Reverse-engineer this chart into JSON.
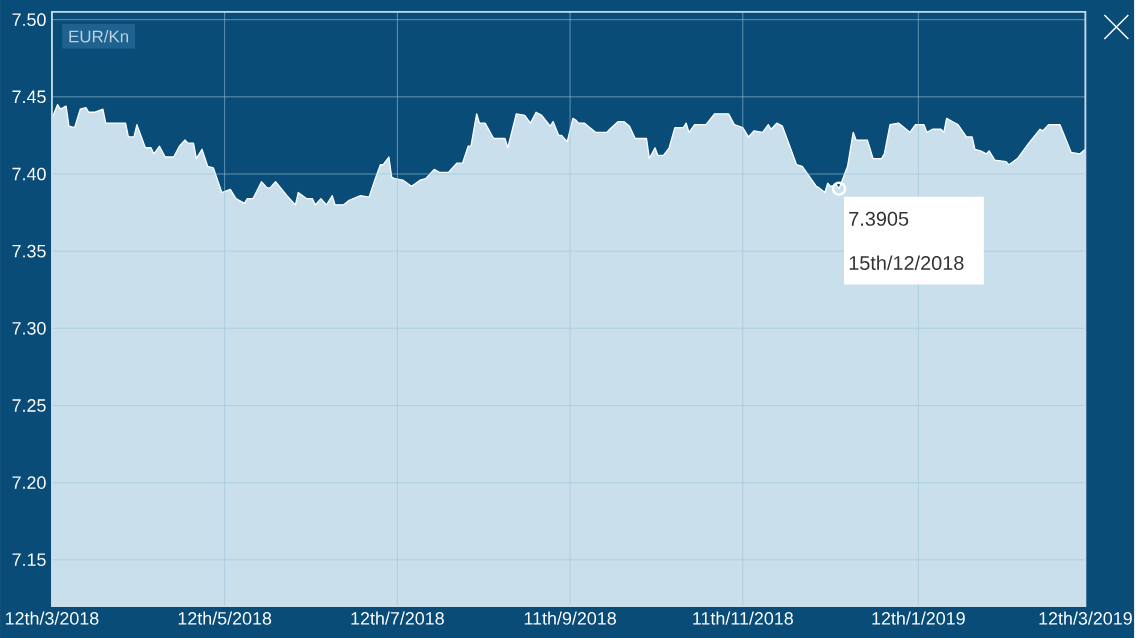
{
  "chart_data": {
    "type": "area",
    "title": "EUR/Kn",
    "xlim": [
      "2018-03-12",
      "2019-03-12"
    ],
    "xticks": [
      {
        "value": "2018-03-12",
        "label": "12th/3/2018"
      },
      {
        "value": "2018-05-12",
        "label": "12th/5/2018"
      },
      {
        "value": "2018-07-12",
        "label": "12th/7/2018"
      },
      {
        "value": "2018-09-11",
        "label": "11th/9/2018"
      },
      {
        "value": "2018-11-11",
        "label": "11th/11/2018"
      },
      {
        "value": "2019-01-12",
        "label": "12th/1/2019"
      },
      {
        "value": "2019-03-12",
        "label": "12th/3/2019"
      }
    ],
    "ylim": [
      7.12,
      7.505
    ],
    "yticks": [
      7.15,
      {
        "value": 7.2,
        "label": "7.20"
      },
      7.25,
      {
        "value": 7.3,
        "label": "7.30"
      },
      7.35,
      {
        "value": 7.4,
        "label": "7.40"
      },
      7.45,
      {
        "value": 7.5,
        "label": "7.50"
      }
    ],
    "grid": true,
    "series": [
      {
        "color": "#c9dfeb",
        "x": [
          "2018-03-12",
          "2018-03-14",
          "2018-03-15",
          "2018-03-17",
          "2018-03-18",
          "2018-03-20",
          "2018-03-22",
          "2018-03-24",
          "2018-03-25",
          "2018-03-27",
          "2018-03-30",
          "2018-03-31",
          "2018-04-07",
          "2018-04-08",
          "2018-04-10",
          "2018-04-11",
          "2018-04-14",
          "2018-04-16",
          "2018-04-17",
          "2018-04-19",
          "2018-04-21",
          "2018-04-24",
          "2018-04-26",
          "2018-04-28",
          "2018-04-29",
          "2018-05-01",
          "2018-05-02",
          "2018-05-04",
          "2018-05-06",
          "2018-05-08",
          "2018-05-11",
          "2018-05-14",
          "2018-05-16",
          "2018-05-19",
          "2018-05-20",
          "2018-05-22",
          "2018-05-25",
          "2018-05-27",
          "2018-05-28",
          "2018-05-30",
          "2018-06-03",
          "2018-06-06",
          "2018-06-07",
          "2018-06-10",
          "2018-06-12",
          "2018-06-13",
          "2018-06-15",
          "2018-06-17",
          "2018-06-19",
          "2018-06-20",
          "2018-06-23",
          "2018-06-25",
          "2018-06-29",
          "2018-07-02",
          "2018-07-04",
          "2018-07-06",
          "2018-07-07",
          "2018-07-09",
          "2018-07-10",
          "2018-07-11",
          "2018-07-14",
          "2018-07-17",
          "2018-07-20",
          "2018-07-22",
          "2018-07-25",
          "2018-07-27",
          "2018-07-30",
          "2018-08-02",
          "2018-08-04",
          "2018-08-06",
          "2018-08-07",
          "2018-08-09",
          "2018-08-10",
          "2018-08-12",
          "2018-08-15",
          "2018-08-19",
          "2018-08-20",
          "2018-08-23",
          "2018-08-26",
          "2018-08-28",
          "2018-08-30",
          "2018-09-01",
          "2018-09-04",
          "2018-09-05",
          "2018-09-07",
          "2018-09-08",
          "2018-09-10",
          "2018-09-12",
          "2018-09-13",
          "2018-09-14",
          "2018-09-16",
          "2018-09-18",
          "2018-09-20",
          "2018-09-24",
          "2018-09-25",
          "2018-09-28",
          "2018-09-30",
          "2018-10-02",
          "2018-10-04",
          "2018-10-08",
          "2018-10-09",
          "2018-10-11",
          "2018-10-12",
          "2018-10-14",
          "2018-10-16",
          "2018-10-18",
          "2018-10-21",
          "2018-10-22",
          "2018-10-23",
          "2018-10-25",
          "2018-10-29",
          "2018-11-01",
          "2018-11-06",
          "2018-11-08",
          "2018-11-11",
          "2018-11-13",
          "2018-11-15",
          "2018-11-18",
          "2018-11-20",
          "2018-11-21",
          "2018-11-23",
          "2018-11-25",
          "2018-11-28",
          "2018-11-30",
          "2018-12-02",
          "2018-12-07",
          "2018-12-08",
          "2018-12-10",
          "2018-12-11",
          "2018-12-12",
          "2018-12-14",
          "2018-12-15",
          "2018-12-18",
          "2018-12-20",
          "2018-12-21",
          "2018-12-25",
          "2018-12-27",
          "2018-12-30",
          "2018-12-31",
          "2019-01-02",
          "2019-01-05",
          "2019-01-09",
          "2019-01-11",
          "2019-01-14",
          "2019-01-15",
          "2019-01-17",
          "2019-01-20",
          "2019-01-21",
          "2019-01-22",
          "2019-01-24",
          "2019-01-26",
          "2019-01-29",
          "2019-01-31",
          "2019-02-01",
          "2019-02-03",
          "2019-02-05",
          "2019-02-06",
          "2019-02-08",
          "2019-02-12",
          "2019-02-13",
          "2019-02-16",
          "2019-02-20",
          "2019-02-24",
          "2019-02-25",
          "2019-02-27",
          "2019-03-03",
          "2019-03-07",
          "2019-03-10",
          "2019-03-12"
        ],
        "values": [
          7.436,
          7.445,
          7.442,
          7.444,
          7.431,
          7.43,
          7.442,
          7.443,
          7.44,
          7.44,
          7.442,
          7.433,
          7.433,
          7.424,
          7.424,
          7.432,
          7.417,
          7.417,
          7.413,
          7.418,
          7.411,
          7.411,
          7.418,
          7.422,
          7.42,
          7.42,
          7.41,
          7.416,
          7.405,
          7.404,
          7.388,
          7.39,
          7.384,
          7.381,
          7.384,
          7.384,
          7.395,
          7.391,
          7.391,
          7.395,
          7.386,
          7.38,
          7.388,
          7.384,
          7.384,
          7.38,
          7.384,
          7.38,
          7.386,
          7.38,
          7.38,
          7.383,
          7.386,
          7.385,
          7.396,
          7.406,
          7.406,
          7.411,
          7.398,
          7.397,
          7.396,
          7.392,
          7.396,
          7.397,
          7.403,
          7.401,
          7.401,
          7.407,
          7.407,
          7.418,
          7.418,
          7.439,
          7.433,
          7.433,
          7.423,
          7.423,
          7.417,
          7.439,
          7.438,
          7.433,
          7.44,
          7.438,
          7.431,
          7.434,
          7.425,
          7.425,
          7.421,
          7.436,
          7.435,
          7.433,
          7.433,
          7.43,
          7.427,
          7.427,
          7.429,
          7.434,
          7.434,
          7.431,
          7.423,
          7.423,
          7.41,
          7.417,
          7.412,
          7.412,
          7.417,
          7.43,
          7.43,
          7.433,
          7.427,
          7.432,
          7.432,
          7.439,
          7.439,
          7.432,
          7.43,
          7.424,
          7.428,
          7.427,
          7.432,
          7.429,
          7.433,
          7.431,
          7.416,
          7.406,
          7.405,
          7.392,
          7.391,
          7.388,
          7.394,
          7.392,
          7.393,
          7.3905,
          7.405,
          7.427,
          7.422,
          7.422,
          7.41,
          7.41,
          7.413,
          7.432,
          7.433,
          7.427,
          7.432,
          7.432,
          7.427,
          7.429,
          7.429,
          7.427,
          7.436,
          7.434,
          7.432,
          7.424,
          7.424,
          7.416,
          7.415,
          7.413,
          7.415,
          7.409,
          7.408,
          7.406,
          7.41,
          7.42,
          7.429,
          7.428,
          7.432,
          7.432,
          7.414,
          7.413,
          7.416
        ]
      }
    ],
    "annotations": [
      {
        "text": "7.3905",
        "x": "2018-12-15",
        "y": 7.3905
      },
      "15th/12/2018"
    ]
  }
}
